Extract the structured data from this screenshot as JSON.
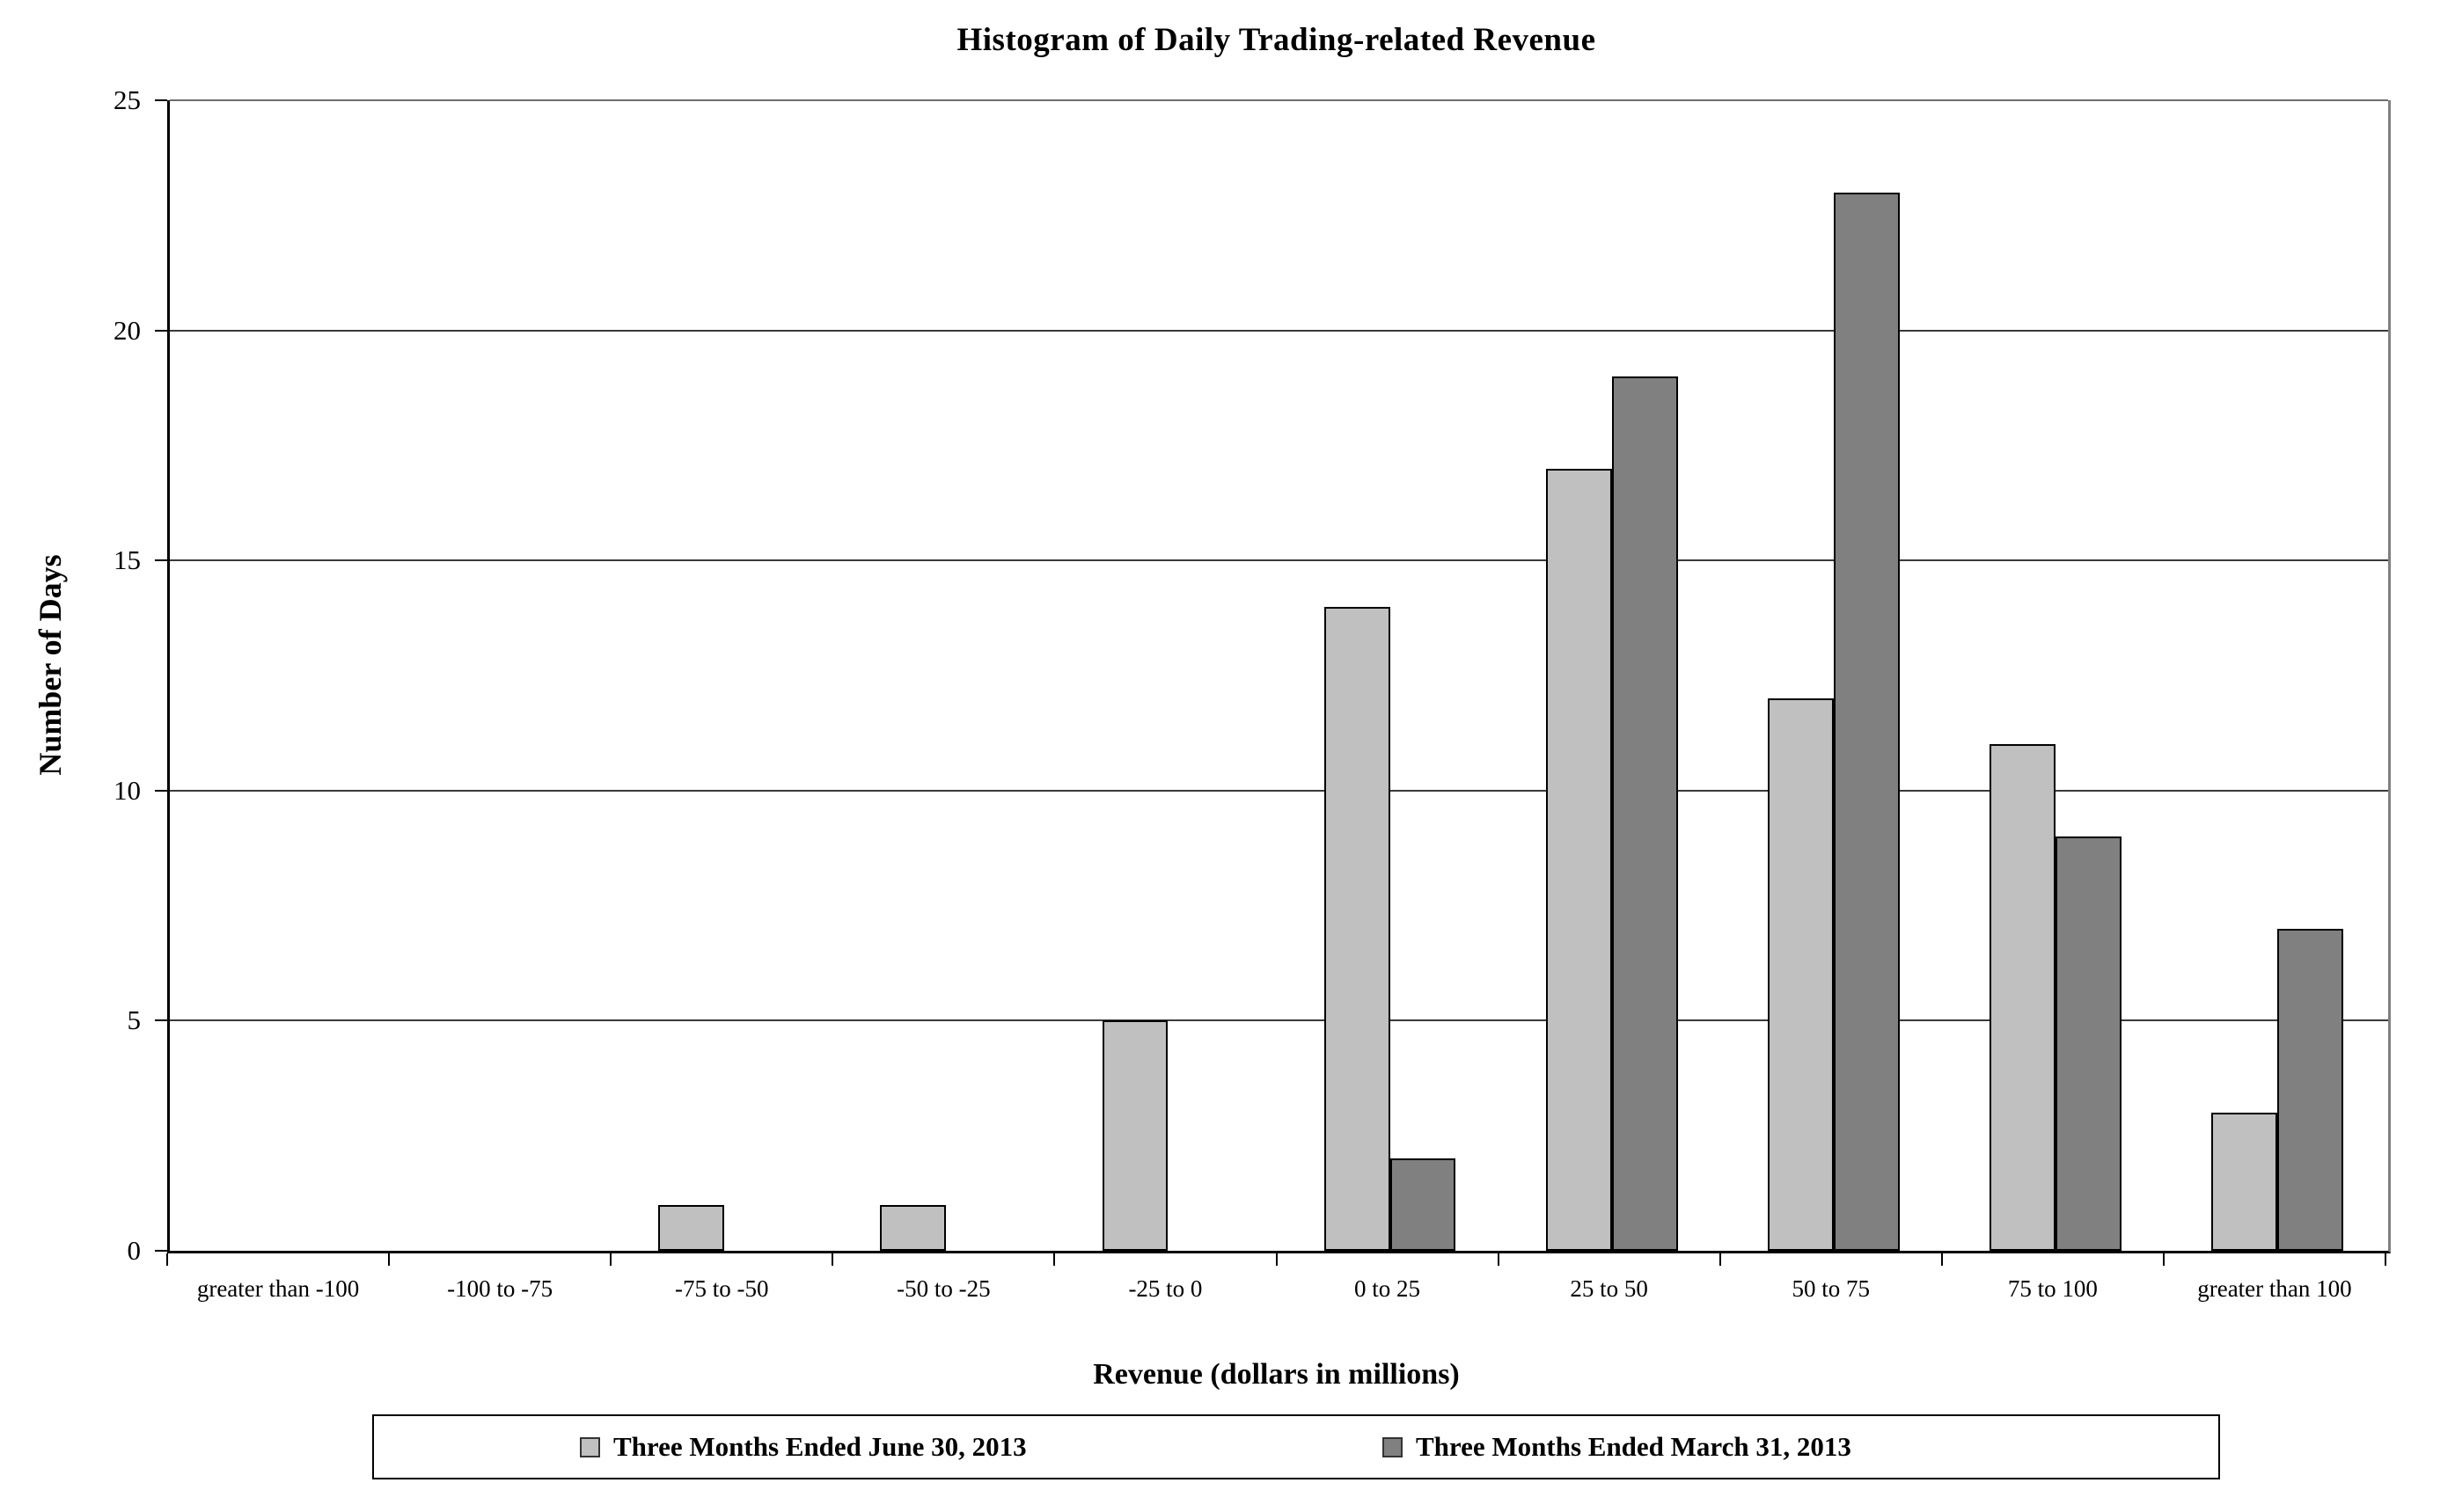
{
  "chart_data": {
    "type": "bar",
    "title": "Histogram of Daily Trading-related Revenue",
    "xlabel": "Revenue (dollars in millions)",
    "ylabel": "Number of Days",
    "categories": [
      "greater than -100",
      "-100 to -75",
      "-75 to -50",
      "-50 to -25",
      "-25 to 0",
      "0 to 25",
      "25 to 50",
      "50 to 75",
      "75 to 100",
      "greater than 100"
    ],
    "series": [
      {
        "name": "Three Months Ended June 30, 2013",
        "color": "#c0c0c0",
        "values": [
          0,
          0,
          1,
          1,
          5,
          14,
          17,
          12,
          11,
          3
        ]
      },
      {
        "name": "Three Months Ended March 31, 2013",
        "color": "#808080",
        "values": [
          0,
          0,
          0,
          0,
          0,
          2,
          19,
          23,
          9,
          7
        ]
      }
    ],
    "ylim": [
      0,
      25
    ],
    "yticks": [
      0,
      5,
      10,
      15,
      20,
      25
    ],
    "grid": "horizontal",
    "bar_border_color": "#000000",
    "legend_position": "bottom"
  }
}
